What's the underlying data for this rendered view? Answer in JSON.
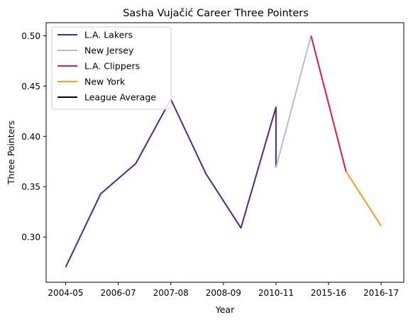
{
  "chart_data": {
    "type": "line",
    "title": "Sasha Vujačić Career Three Pointers",
    "xlabel": "Year",
    "ylabel": "Three Pointers",
    "x_ticks": [
      "2004-05",
      "2006-07",
      "2007-08",
      "2008-09",
      "2010-11",
      "2015-16",
      "2016-17"
    ],
    "y_ticks": [
      "0.30",
      "0.35",
      "0.40",
      "0.45",
      "0.50"
    ],
    "xlim": [
      -0.5,
      9.0
    ],
    "ylim": [
      0.255,
      0.513
    ],
    "grid": false,
    "legend_position": "top-left",
    "series": [
      {
        "name": "L.A. Lakers",
        "color": "#552583",
        "points": [
          [
            0,
            0.27
          ],
          [
            1,
            0.343
          ],
          [
            2,
            0.373
          ],
          [
            3,
            0.437
          ],
          [
            4,
            0.363
          ],
          [
            5,
            0.309
          ],
          [
            6,
            0.429
          ],
          [
            6,
            0.369
          ]
        ]
      },
      {
        "name": "New Jersey",
        "color": "#bdbdbd",
        "points": [
          [
            6,
            0.369
          ],
          [
            7,
            0.5
          ]
        ]
      },
      {
        "name": "L.A. Clippers",
        "color": "#e0194f",
        "points": [
          [
            7,
            0.5
          ],
          [
            8,
            0.365
          ]
        ]
      },
      {
        "name": "New York",
        "color": "#f59d23",
        "points": [
          [
            8,
            0.365
          ],
          [
            9,
            0.311
          ]
        ]
      },
      {
        "name": "League Average",
        "color": "#000000",
        "points": []
      }
    ]
  }
}
